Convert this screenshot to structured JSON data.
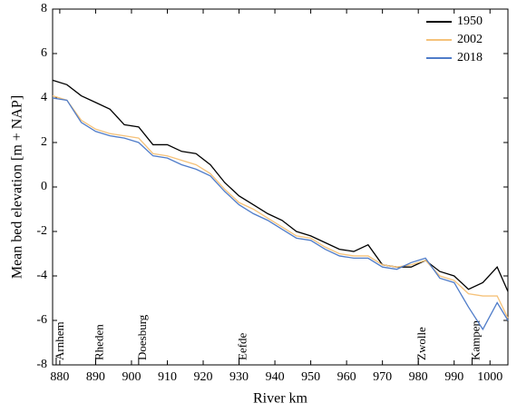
{
  "chart_data": {
    "type": "line",
    "xlabel": "River km",
    "ylabel": "Mean bed elevation [m + NAP]",
    "x": [
      878,
      882,
      886,
      890,
      894,
      898,
      902,
      906,
      910,
      914,
      918,
      922,
      926,
      930,
      934,
      938,
      942,
      946,
      950,
      954,
      958,
      962,
      966,
      970,
      974,
      978,
      982,
      986,
      990,
      994,
      998,
      1002,
      1005
    ],
    "series": [
      {
        "name": "1950",
        "color": "#000000",
        "values": [
          4.8,
          4.6,
          4.1,
          3.8,
          3.5,
          2.8,
          2.7,
          1.9,
          1.9,
          1.6,
          1.5,
          1.0,
          0.2,
          -0.4,
          -0.8,
          -1.2,
          -1.5,
          -2.0,
          -2.2,
          -2.5,
          -2.8,
          -2.9,
          -2.6,
          -3.5,
          -3.6,
          -3.6,
          -3.3,
          -3.8,
          -4.0,
          -4.6,
          -4.3,
          -3.6,
          -4.7
        ]
      },
      {
        "name": "2002",
        "color": "#f5c27a",
        "values": [
          4.1,
          3.9,
          3.0,
          2.6,
          2.4,
          2.3,
          2.2,
          1.5,
          1.4,
          1.2,
          1.0,
          0.6,
          -0.1,
          -0.7,
          -1.0,
          -1.4,
          -1.8,
          -2.2,
          -2.3,
          -2.7,
          -3.0,
          -3.1,
          -3.1,
          -3.5,
          -3.6,
          -3.5,
          -3.3,
          -4.0,
          -4.2,
          -4.8,
          -4.9,
          -4.9,
          -5.9
        ]
      },
      {
        "name": "2018",
        "color": "#4f7cc9",
        "values": [
          4.0,
          3.9,
          2.9,
          2.5,
          2.3,
          2.2,
          2.0,
          1.4,
          1.3,
          1.0,
          0.8,
          0.5,
          -0.2,
          -0.8,
          -1.2,
          -1.5,
          -1.9,
          -2.3,
          -2.4,
          -2.8,
          -3.1,
          -3.2,
          -3.2,
          -3.6,
          -3.7,
          -3.4,
          -3.2,
          -4.1,
          -4.3,
          -5.4,
          -6.4,
          -5.2,
          -6.0
        ]
      }
    ],
    "annotations": [
      {
        "text": "Arnhem",
        "x": 879
      },
      {
        "text": "Rheden",
        "x": 890
      },
      {
        "text": "Doesburg",
        "x": 902
      },
      {
        "text": "Eefde",
        "x": 930
      },
      {
        "text": "Zwolle",
        "x": 980
      },
      {
        "text": "Kampen",
        "x": 995
      }
    ],
    "xlim": [
      878,
      1005
    ],
    "ylim": [
      -8,
      8
    ],
    "xticks": [
      880,
      890,
      900,
      910,
      920,
      930,
      940,
      950,
      960,
      970,
      980,
      990,
      1000
    ],
    "yticks": [
      -8,
      -6,
      -4,
      -2,
      0,
      2,
      4,
      6,
      8
    ],
    "legend": "upper right"
  }
}
